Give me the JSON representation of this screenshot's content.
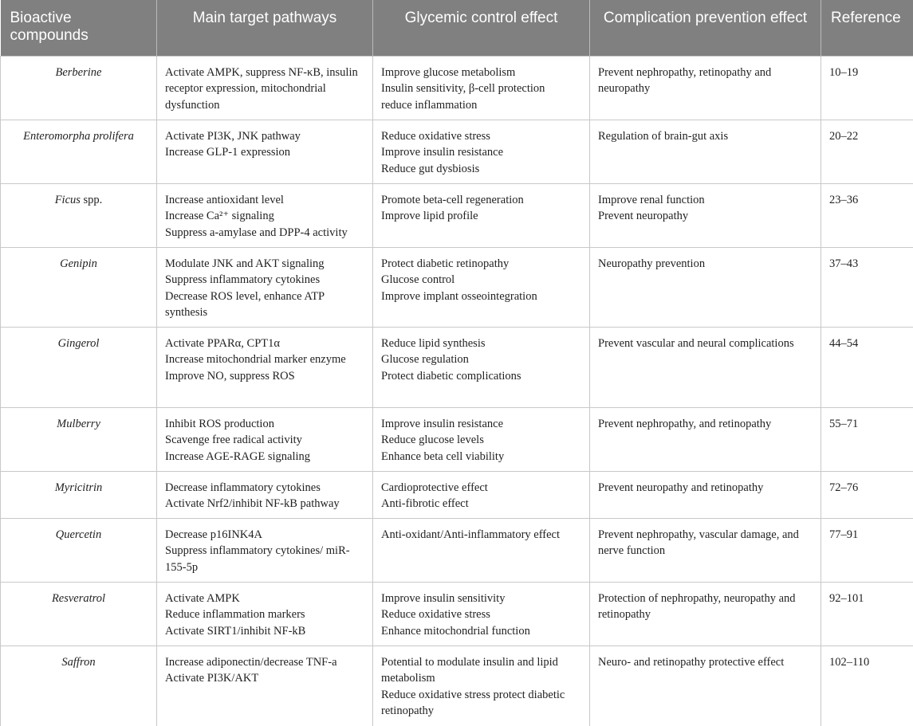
{
  "table": {
    "header": [
      "Bioactive compounds",
      "Main target pathways",
      "Glycemic control effect",
      "Complication prevention effect",
      "Reference"
    ],
    "rows": [
      {
        "compound": [
          "Berberine"
        ],
        "pathways": [
          "Activate AMPK, suppress NF-κB, insulin receptor expression, mitochondrial dysfunction"
        ],
        "glycemic": [
          "Improve glucose metabolism",
          "Insulin sensitivity, β-cell protection",
          "reduce inflammation"
        ],
        "prevention": [
          "Prevent nephropathy, retinopathy and neuropathy"
        ],
        "reference": "10–19"
      },
      {
        "compound": [
          "Enteromorpha prolifera"
        ],
        "pathways": [
          "Activate PI3K, JNK pathway",
          "Increase GLP-1 expression"
        ],
        "glycemic": [
          "Reduce oxidative stress",
          "Improve insulin resistance",
          "Reduce gut dysbiosis"
        ],
        "prevention": [
          "Regulation of brain-gut axis"
        ],
        "reference": "20–22"
      },
      {
        "compound": [
          "Ficus",
          " spp."
        ],
        "pathways": [
          "Increase antioxidant level",
          "Increase Ca²⁺ signaling",
          "Suppress a-amylase and DPP-4 activity"
        ],
        "glycemic": [
          "Promote beta-cell regeneration",
          "Improve lipid profile"
        ],
        "prevention": [
          "Improve renal function",
          "Prevent neuropathy"
        ],
        "reference": "23–36"
      },
      {
        "compound": [
          "Genipin"
        ],
        "pathways": [
          "Modulate JNK and AKT signaling",
          "Suppress inflammatory cytokines",
          "Decrease ROS level, enhance ATP synthesis"
        ],
        "glycemic": [
          "Protect diabetic retinopathy",
          "Glucose control",
          "Improve implant osseointegration"
        ],
        "prevention": [
          "Neuropathy prevention"
        ],
        "reference": "37–43"
      },
      {
        "compound": [
          "Gingerol"
        ],
        "pathways": [
          "Activate PPARα, CPT1α",
          "Increase mitochondrial marker enzyme",
          "Improve NO, suppress ROS"
        ],
        "glycemic": [
          "Reduce lipid synthesis",
          "Glucose regulation",
          "Protect diabetic complications"
        ],
        "prevention": [
          "Prevent vascular and neural complications"
        ],
        "reference": "44–54"
      },
      {
        "compound": [
          "Mulberry"
        ],
        "pathways": [
          "Inhibit ROS production",
          "Scavenge free radical activity",
          "Increase AGE-RAGE signaling"
        ],
        "glycemic": [
          "Improve insulin resistance",
          "Reduce glucose levels",
          "Enhance beta cell viability"
        ],
        "prevention": [
          "Prevent nephropathy, and retinopathy"
        ],
        "reference": "55–71"
      },
      {
        "compound": [
          "Myricitrin"
        ],
        "pathways": [
          "Decrease inflammatory cytokines",
          "Activate Nrf2/inhibit NF-kB pathway"
        ],
        "glycemic": [
          "Cardioprotective effect",
          "Anti-fibrotic effect"
        ],
        "prevention": [
          "Prevent neuropathy and retinopathy"
        ],
        "reference": "72–76"
      },
      {
        "compound": [
          "Quercetin"
        ],
        "pathways": [
          "Decrease p16INK4A",
          "Suppress inflammatory cytokines/ miR-155-5p"
        ],
        "glycemic": [
          "Anti-oxidant/Anti-inflammatory effect"
        ],
        "prevention": [
          "Prevent nephropathy, vascular damage, and nerve function"
        ],
        "reference": "77–91"
      },
      {
        "compound": [
          "Resveratrol"
        ],
        "pathways": [
          "Activate AMPK",
          "Reduce inflammation markers",
          "Activate SIRT1/inhibit NF-kB"
        ],
        "glycemic": [
          "Improve insulin sensitivity",
          "Reduce oxidative stress",
          "Enhance mitochondrial function"
        ],
        "prevention": [
          "Protection of nephropathy, neuropathy and retinopathy"
        ],
        "reference": "92–101"
      },
      {
        "compound": [
          "Saffron"
        ],
        "pathways": [
          "Increase adiponectin/decrease TNF-a",
          "Activate PI3K/AKT"
        ],
        "glycemic": [
          "Potential to modulate insulin and lipid metabolism",
          "Reduce oxidative stress protect diabetic retinopathy"
        ],
        "prevention": [
          "Neuro- and retinopathy protective effect"
        ],
        "reference": "102–110"
      }
    ]
  }
}
